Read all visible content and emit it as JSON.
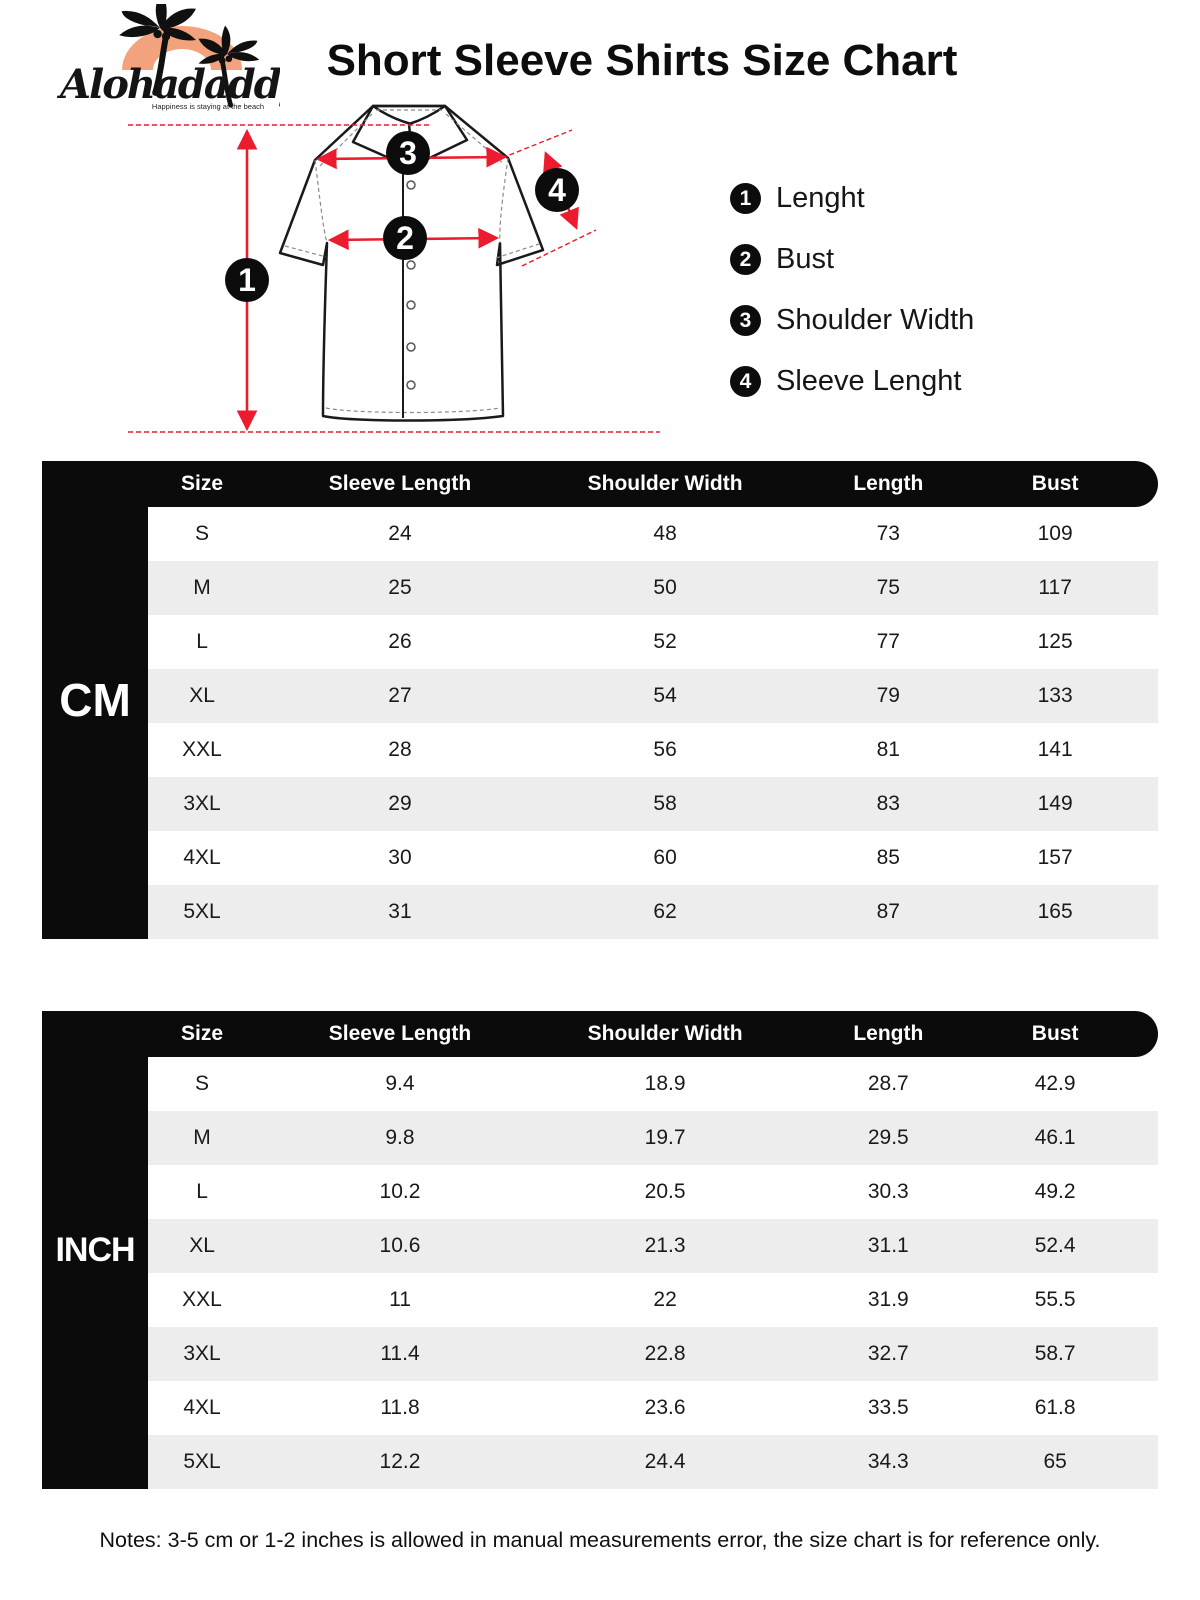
{
  "brand": {
    "name": "Alohadaddy",
    "tagline": "Happiness is staying at the beach"
  },
  "title": "Short Sleeve Shirts Size Chart",
  "legend": {
    "items": [
      {
        "number": "1",
        "label": "Lenght"
      },
      {
        "number": "2",
        "label": "Bust"
      },
      {
        "number": "3",
        "label": "Shoulder Width"
      },
      {
        "number": "4",
        "label": "Sleeve Lenght"
      }
    ]
  },
  "diagram": {
    "markers": [
      {
        "number": "1"
      },
      {
        "number": "2"
      },
      {
        "number": "3"
      },
      {
        "number": "4"
      }
    ]
  },
  "tables": {
    "cm": {
      "unit": "CM",
      "columns": [
        "Size",
        "Sleeve Length",
        "Shoulder Width",
        "Length",
        "Bust"
      ],
      "rows": [
        [
          "S",
          "24",
          "48",
          "73",
          "109"
        ],
        [
          "M",
          "25",
          "50",
          "75",
          "117"
        ],
        [
          "L",
          "26",
          "52",
          "77",
          "125"
        ],
        [
          "XL",
          "27",
          "54",
          "79",
          "133"
        ],
        [
          "XXL",
          "28",
          "56",
          "81",
          "141"
        ],
        [
          "3XL",
          "29",
          "58",
          "83",
          "149"
        ],
        [
          "4XL",
          "30",
          "60",
          "85",
          "157"
        ],
        [
          "5XL",
          "31",
          "62",
          "87",
          "165"
        ]
      ]
    },
    "inch": {
      "unit": "INCH",
      "columns": [
        "Size",
        "Sleeve Length",
        "Shoulder Width",
        "Length",
        "Bust"
      ],
      "rows": [
        [
          "S",
          "9.4",
          "18.9",
          "28.7",
          "42.9"
        ],
        [
          "M",
          "9.8",
          "19.7",
          "29.5",
          "46.1"
        ],
        [
          "L",
          "10.2",
          "20.5",
          "30.3",
          "49.2"
        ],
        [
          "XL",
          "10.6",
          "21.3",
          "31.1",
          "52.4"
        ],
        [
          "XXL",
          "11",
          "22",
          "31.9",
          "55.5"
        ],
        [
          "3XL",
          "11.4",
          "22.8",
          "32.7",
          "58.7"
        ],
        [
          "4XL",
          "11.8",
          "23.6",
          "33.5",
          "61.8"
        ],
        [
          "5XL",
          "12.2",
          "24.4",
          "34.3",
          "65"
        ]
      ]
    }
  },
  "notes": "Notes: 3-5 cm or 1-2 inches is allowed in manual measurements error, the size chart is for reference only.",
  "colors": {
    "accent_red": "#ec1c2e",
    "logo_arch": "#f2a27c",
    "bar_black": "#0b0b0b",
    "row_alt_bg": "#ededed"
  }
}
